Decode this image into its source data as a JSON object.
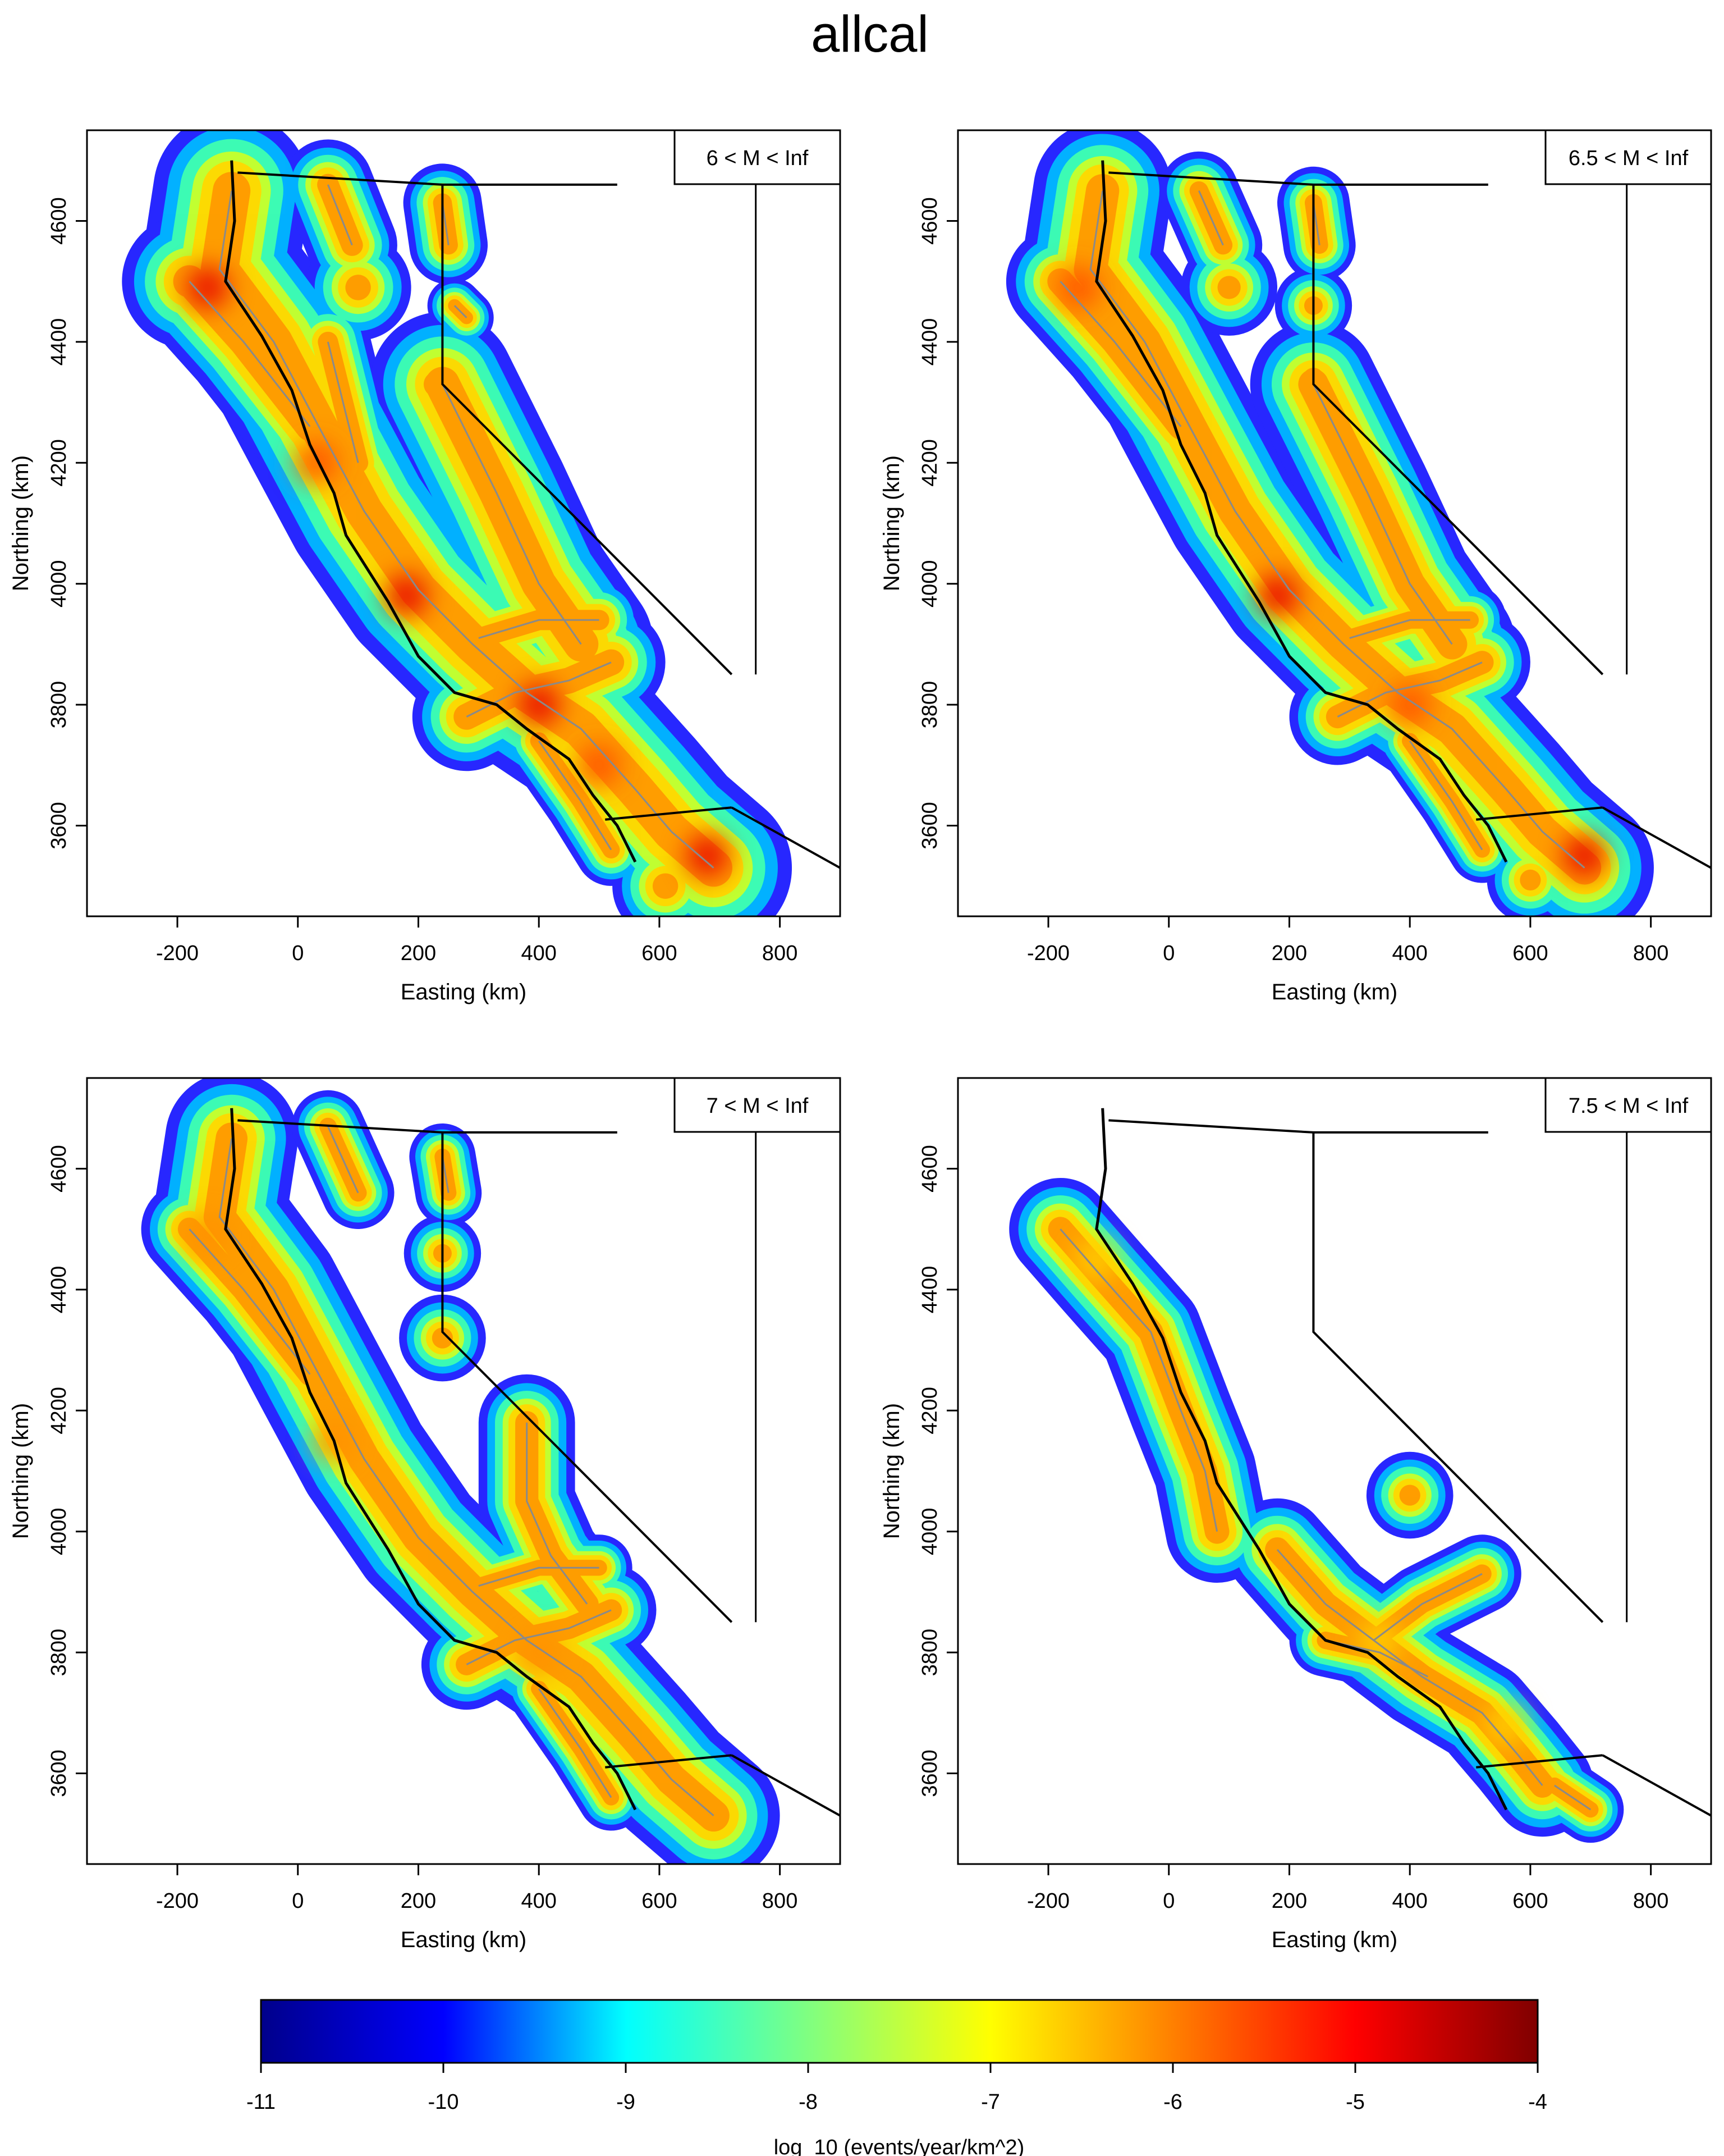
{
  "figure": {
    "title": "allcal"
  },
  "chart_data": [
    {
      "type": "heatmap",
      "panel_label": "6 < M < Inf",
      "xlabel": "Easting (km)",
      "ylabel": "Northing (km)",
      "xlim": [
        -350,
        900
      ],
      "ylim": [
        3450,
        4750
      ],
      "xticks": [
        -200,
        0,
        200,
        400,
        600,
        800
      ],
      "yticks": [
        3600,
        3800,
        4000,
        4200,
        4400,
        4600
      ],
      "hotspots": [
        {
          "x": -150,
          "y": 4490,
          "v": -5.2
        },
        {
          "x": 30,
          "y": 4200,
          "v": -5.4
        },
        {
          "x": 180,
          "y": 3980,
          "v": -4.9
        },
        {
          "x": 400,
          "y": 3800,
          "v": -5.0
        },
        {
          "x": 500,
          "y": 3700,
          "v": -5.3
        },
        {
          "x": 680,
          "y": 3550,
          "v": -5.2
        }
      ]
    },
    {
      "type": "heatmap",
      "panel_label": "6.5 < M < Inf",
      "xlabel": "Easting (km)",
      "ylabel": "Northing (km)",
      "xlim": [
        -350,
        900
      ],
      "ylim": [
        3450,
        4750
      ],
      "xticks": [
        -200,
        0,
        200,
        400,
        600,
        800
      ],
      "yticks": [
        3600,
        3800,
        4000,
        4200,
        4400,
        4600
      ],
      "hotspots": [
        {
          "x": -150,
          "y": 4490,
          "v": -5.3
        },
        {
          "x": 180,
          "y": 3980,
          "v": -5.0
        },
        {
          "x": 400,
          "y": 3800,
          "v": -5.3
        },
        {
          "x": 690,
          "y": 3550,
          "v": -5.2
        }
      ]
    },
    {
      "type": "heatmap",
      "panel_label": "7 < M < Inf",
      "xlabel": "Easting (km)",
      "ylabel": "Northing (km)",
      "xlim": [
        -350,
        900
      ],
      "ylim": [
        3450,
        4750
      ],
      "xticks": [
        -200,
        0,
        200,
        400,
        600,
        800
      ],
      "yticks": [
        3600,
        3800,
        4000,
        4200,
        4400,
        4600
      ],
      "hotspots": [
        {
          "x": -150,
          "y": 4490,
          "v": -6.0
        },
        {
          "x": 60,
          "y": 4150,
          "v": -6.0
        },
        {
          "x": 400,
          "y": 3800,
          "v": -6.1
        }
      ]
    },
    {
      "type": "heatmap",
      "panel_label": "7.5 < M < Inf",
      "xlabel": "Easting (km)",
      "ylabel": "Northing (km)",
      "xlim": [
        -350,
        900
      ],
      "ylim": [
        3450,
        4750
      ],
      "xticks": [
        -200,
        0,
        200,
        400,
        600,
        800
      ],
      "yticks": [
        3600,
        3800,
        4000,
        4200,
        4400,
        4600
      ],
      "hotspots": [
        {
          "x": -120,
          "y": 4450,
          "v": -7.3
        },
        {
          "x": 350,
          "y": 3820,
          "v": -7.2
        },
        {
          "x": 560,
          "y": 3680,
          "v": -7.4
        }
      ]
    }
  ],
  "colorbar": {
    "label": "log_10 (events/year/km^2)",
    "min": -11,
    "max": -4,
    "ticks": [
      "-11",
      "-10",
      "-9",
      "-8",
      "-7",
      "-6",
      "-5",
      "-4"
    ],
    "colors": [
      "#00008b",
      "#0000ff",
      "#00ffff",
      "#ffff00",
      "#ff8000",
      "#ff0000",
      "#800000"
    ]
  }
}
